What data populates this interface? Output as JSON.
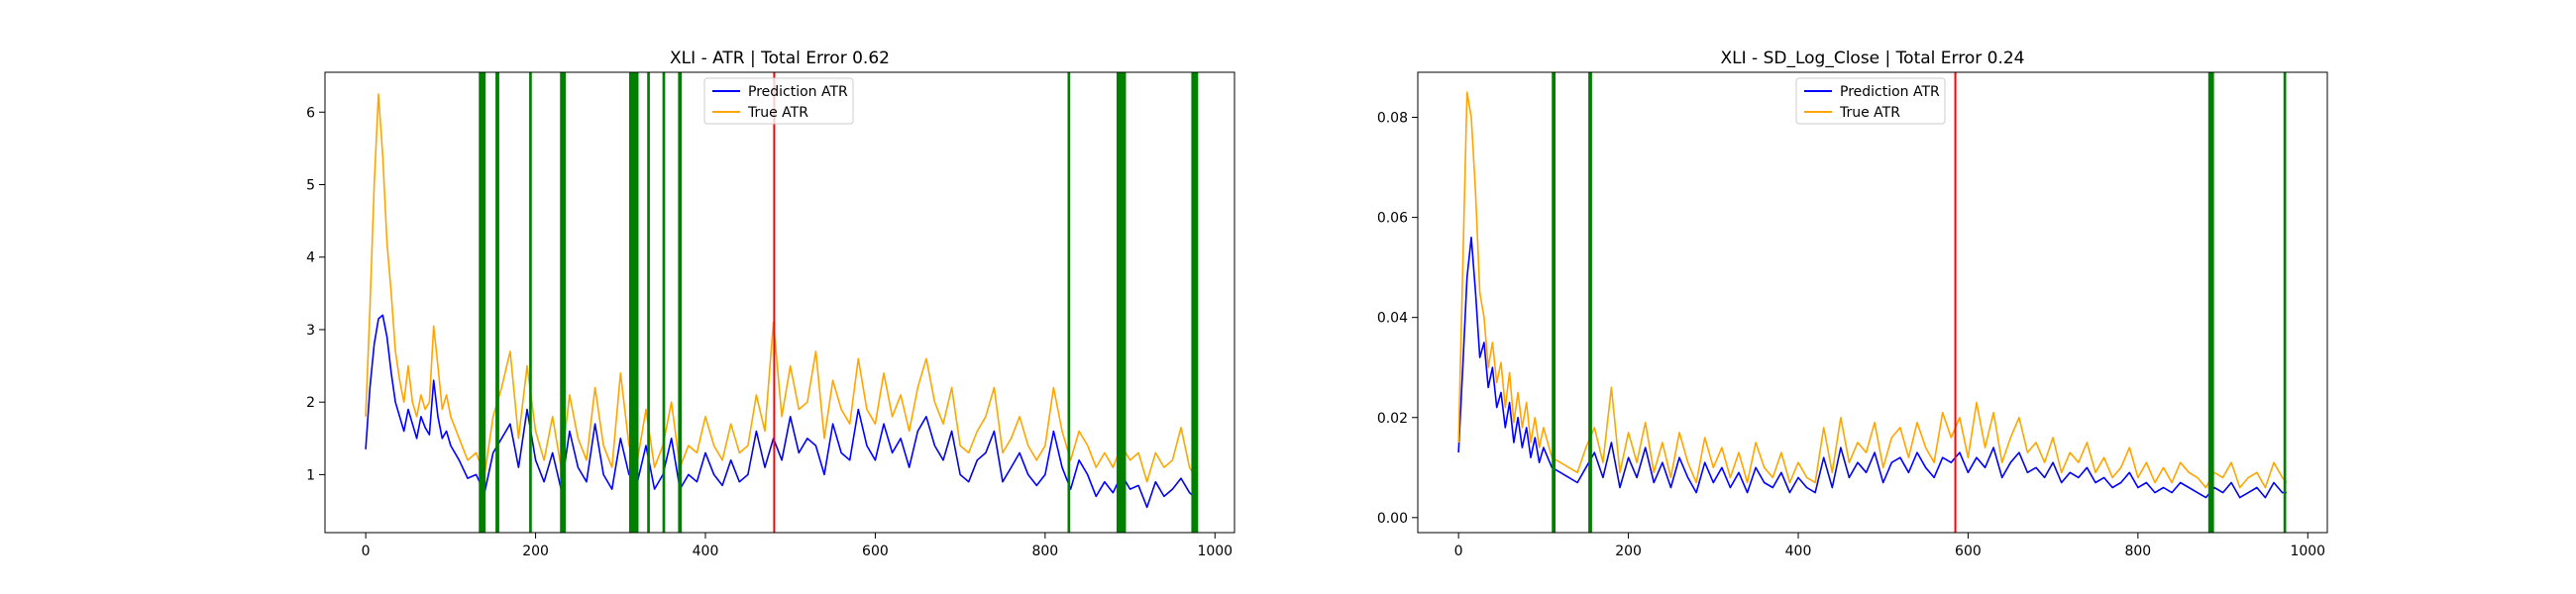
{
  "colors": {
    "prediction": "#0000ff",
    "true": "#ffa500",
    "marker_green": "#008000",
    "marker_red": "#ff0000",
    "axis": "#000000"
  },
  "chart_data": [
    {
      "type": "line",
      "title": "XLI - ATR | Total Error 0.62",
      "xlabel": "",
      "ylabel": "",
      "xlim": [
        -48,
        1023
      ],
      "ylim": [
        0.2,
        6.55
      ],
      "xticks": [
        0,
        200,
        400,
        600,
        800,
        1000
      ],
      "yticks": [
        1,
        2,
        3,
        4,
        5,
        6
      ],
      "legend": {
        "placement": "top-center",
        "entries": [
          "Prediction ATR",
          "True ATR"
        ]
      },
      "green_lines": [
        {
          "x": 136,
          "w": 3
        },
        {
          "x": 139,
          "w": 2
        },
        {
          "x": 155,
          "w": 2
        },
        {
          "x": 194,
          "w": 1
        },
        {
          "x": 231,
          "w": 2
        },
        {
          "x": 234,
          "w": 1
        },
        {
          "x": 313,
          "w": 3
        },
        {
          "x": 316,
          "w": 3
        },
        {
          "x": 319,
          "w": 2
        },
        {
          "x": 333,
          "w": 1
        },
        {
          "x": 351,
          "w": 1
        },
        {
          "x": 370,
          "w": 2
        },
        {
          "x": 828,
          "w": 1
        },
        {
          "x": 887,
          "w": 3
        },
        {
          "x": 890,
          "w": 3
        },
        {
          "x": 893,
          "w": 2
        },
        {
          "x": 975,
          "w": 3
        },
        {
          "x": 978,
          "w": 2
        }
      ],
      "red_lines": [
        481
      ],
      "series": [
        {
          "name": "Prediction ATR",
          "color_key": "prediction",
          "x": [
            0,
            5,
            10,
            15,
            20,
            25,
            30,
            35,
            40,
            45,
            50,
            55,
            60,
            65,
            70,
            75,
            80,
            85,
            90,
            95,
            100,
            110,
            120,
            130,
            140,
            150,
            160,
            170,
            180,
            190,
            200,
            210,
            220,
            230,
            240,
            250,
            260,
            270,
            280,
            290,
            300,
            310,
            320,
            330,
            340,
            350,
            360,
            370,
            380,
            390,
            400,
            410,
            420,
            430,
            440,
            450,
            460,
            470,
            480,
            490,
            500,
            510,
            520,
            530,
            540,
            550,
            560,
            570,
            580,
            590,
            600,
            610,
            620,
            630,
            640,
            650,
            660,
            670,
            680,
            690,
            700,
            710,
            720,
            730,
            740,
            750,
            760,
            770,
            780,
            790,
            800,
            810,
            820,
            830,
            840,
            850,
            860,
            870,
            880,
            890,
            900,
            910,
            920,
            930,
            940,
            950,
            960,
            970,
            975
          ],
          "values": [
            1.35,
            2.2,
            2.8,
            3.15,
            3.2,
            2.9,
            2.4,
            2.0,
            1.8,
            1.6,
            1.9,
            1.7,
            1.5,
            1.8,
            1.65,
            1.55,
            2.3,
            1.8,
            1.5,
            1.6,
            1.4,
            1.2,
            0.95,
            1.0,
            0.75,
            1.3,
            1.5,
            1.7,
            1.1,
            1.9,
            1.2,
            0.9,
            1.3,
            0.8,
            1.6,
            1.1,
            0.9,
            1.7,
            1.0,
            0.8,
            1.5,
            1.0,
            0.9,
            1.4,
            0.8,
            1.0,
            1.5,
            0.8,
            1.0,
            0.9,
            1.3,
            1.0,
            0.85,
            1.2,
            0.9,
            1.0,
            1.6,
            1.1,
            1.5,
            1.2,
            1.8,
            1.3,
            1.5,
            1.4,
            1.0,
            1.7,
            1.3,
            1.2,
            1.9,
            1.4,
            1.2,
            1.7,
            1.3,
            1.5,
            1.1,
            1.6,
            1.8,
            1.4,
            1.2,
            1.6,
            1.0,
            0.9,
            1.2,
            1.3,
            1.6,
            0.9,
            1.1,
            1.3,
            1.0,
            0.85,
            1.0,
            1.6,
            1.1,
            0.8,
            1.2,
            1.0,
            0.7,
            0.9,
            0.75,
            1.0,
            0.8,
            0.85,
            0.55,
            0.9,
            0.7,
            0.8,
            0.95,
            0.75,
            0.7
          ]
        },
        {
          "name": "True ATR",
          "color_key": "true",
          "x": [
            0,
            5,
            10,
            15,
            20,
            25,
            30,
            35,
            40,
            45,
            50,
            55,
            60,
            65,
            70,
            75,
            80,
            85,
            90,
            95,
            100,
            110,
            120,
            130,
            140,
            150,
            160,
            170,
            180,
            190,
            200,
            210,
            220,
            230,
            240,
            250,
            260,
            270,
            280,
            290,
            300,
            310,
            320,
            330,
            340,
            350,
            360,
            370,
            380,
            390,
            400,
            410,
            420,
            430,
            440,
            450,
            460,
            470,
            480,
            490,
            500,
            510,
            520,
            530,
            540,
            550,
            560,
            570,
            580,
            590,
            600,
            610,
            620,
            630,
            640,
            650,
            660,
            670,
            680,
            690,
            700,
            710,
            720,
            730,
            740,
            750,
            760,
            770,
            780,
            790,
            800,
            810,
            820,
            830,
            840,
            850,
            860,
            870,
            880,
            890,
            900,
            910,
            920,
            930,
            940,
            950,
            960,
            970,
            975
          ],
          "values": [
            1.8,
            3.3,
            5.0,
            6.25,
            5.4,
            4.2,
            3.5,
            2.7,
            2.3,
            2.0,
            2.5,
            2.0,
            1.8,
            2.1,
            1.9,
            2.0,
            3.05,
            2.5,
            1.9,
            2.1,
            1.8,
            1.5,
            1.2,
            1.3,
            1.0,
            1.8,
            2.2,
            2.7,
            1.5,
            2.5,
            1.6,
            1.2,
            1.8,
            1.1,
            2.1,
            1.5,
            1.2,
            2.2,
            1.4,
            1.1,
            2.4,
            1.4,
            1.2,
            1.9,
            1.1,
            1.4,
            2.0,
            1.1,
            1.4,
            1.3,
            1.8,
            1.4,
            1.2,
            1.7,
            1.3,
            1.4,
            2.1,
            1.6,
            3.1,
            1.8,
            2.5,
            1.9,
            2.0,
            2.7,
            1.5,
            2.3,
            1.9,
            1.7,
            2.6,
            1.9,
            1.7,
            2.4,
            1.8,
            2.1,
            1.6,
            2.2,
            2.6,
            2.0,
            1.7,
            2.2,
            1.4,
            1.3,
            1.6,
            1.8,
            2.2,
            1.3,
            1.5,
            1.8,
            1.4,
            1.2,
            1.4,
            2.2,
            1.6,
            1.2,
            1.6,
            1.4,
            1.1,
            1.3,
            1.1,
            1.4,
            1.2,
            1.3,
            0.9,
            1.3,
            1.1,
            1.2,
            1.65,
            1.1,
            1.0
          ]
        }
      ]
    },
    {
      "type": "line",
      "title": "XLI - SD_Log_Close | Total Error 0.24",
      "xlabel": "",
      "ylabel": "",
      "xlim": [
        -48,
        1023
      ],
      "ylim": [
        -0.003,
        0.089
      ],
      "xticks": [
        0,
        200,
        400,
        600,
        800,
        1000
      ],
      "yticks": [
        0.0,
        0.02,
        0.04,
        0.06,
        0.08
      ],
      "ytick_labels": [
        "0.00",
        "0.02",
        "0.04",
        "0.06",
        "0.08"
      ],
      "legend": {
        "placement": "top-center",
        "entries": [
          "Prediction ATR",
          "True ATR"
        ]
      },
      "green_lines": [
        {
          "x": 112,
          "w": 2
        },
        {
          "x": 155,
          "w": 2
        },
        {
          "x": 885,
          "w": 2
        },
        {
          "x": 888,
          "w": 1
        },
        {
          "x": 973,
          "w": 1
        }
      ],
      "red_lines": [
        585
      ],
      "series": [
        {
          "name": "Prediction ATR",
          "color_key": "prediction",
          "x": [
            0,
            5,
            10,
            15,
            20,
            25,
            30,
            35,
            40,
            45,
            50,
            55,
            60,
            65,
            70,
            75,
            80,
            85,
            90,
            95,
            100,
            110,
            120,
            130,
            140,
            150,
            160,
            170,
            180,
            190,
            200,
            210,
            220,
            230,
            240,
            250,
            260,
            270,
            280,
            290,
            300,
            310,
            320,
            330,
            340,
            350,
            360,
            370,
            380,
            390,
            400,
            410,
            420,
            430,
            440,
            450,
            460,
            470,
            480,
            490,
            500,
            510,
            520,
            530,
            540,
            550,
            560,
            570,
            580,
            590,
            600,
            610,
            620,
            630,
            640,
            650,
            660,
            670,
            680,
            690,
            700,
            710,
            720,
            730,
            740,
            750,
            760,
            770,
            780,
            790,
            800,
            810,
            820,
            830,
            840,
            850,
            860,
            870,
            880,
            890,
            900,
            910,
            920,
            930,
            940,
            950,
            960,
            970,
            975
          ],
          "values": [
            0.013,
            0.03,
            0.048,
            0.056,
            0.045,
            0.032,
            0.035,
            0.026,
            0.03,
            0.022,
            0.025,
            0.018,
            0.023,
            0.015,
            0.02,
            0.014,
            0.018,
            0.012,
            0.016,
            0.011,
            0.014,
            0.01,
            0.009,
            0.008,
            0.007,
            0.01,
            0.013,
            0.008,
            0.015,
            0.006,
            0.012,
            0.008,
            0.014,
            0.007,
            0.011,
            0.006,
            0.012,
            0.008,
            0.005,
            0.011,
            0.007,
            0.01,
            0.006,
            0.009,
            0.005,
            0.01,
            0.007,
            0.006,
            0.009,
            0.005,
            0.008,
            0.006,
            0.005,
            0.012,
            0.006,
            0.014,
            0.008,
            0.011,
            0.009,
            0.013,
            0.007,
            0.011,
            0.012,
            0.009,
            0.013,
            0.01,
            0.008,
            0.012,
            0.011,
            0.013,
            0.009,
            0.012,
            0.01,
            0.014,
            0.008,
            0.011,
            0.013,
            0.009,
            0.01,
            0.008,
            0.011,
            0.007,
            0.009,
            0.008,
            0.01,
            0.007,
            0.008,
            0.006,
            0.007,
            0.009,
            0.006,
            0.007,
            0.005,
            0.006,
            0.005,
            0.007,
            0.006,
            0.005,
            0.004,
            0.006,
            0.005,
            0.007,
            0.004,
            0.005,
            0.006,
            0.004,
            0.007,
            0.005,
            0.005
          ]
        },
        {
          "name": "True ATR",
          "color_key": "true",
          "x": [
            0,
            5,
            10,
            15,
            20,
            25,
            30,
            35,
            40,
            45,
            50,
            55,
            60,
            65,
            70,
            75,
            80,
            85,
            90,
            95,
            100,
            110,
            120,
            130,
            140,
            150,
            160,
            170,
            180,
            190,
            200,
            210,
            220,
            230,
            240,
            250,
            260,
            270,
            280,
            290,
            300,
            310,
            320,
            330,
            340,
            350,
            360,
            370,
            380,
            390,
            400,
            410,
            420,
            430,
            440,
            450,
            460,
            470,
            480,
            490,
            500,
            510,
            520,
            530,
            540,
            550,
            560,
            570,
            580,
            590,
            600,
            610,
            620,
            630,
            640,
            650,
            660,
            670,
            680,
            690,
            700,
            710,
            720,
            730,
            740,
            750,
            760,
            770,
            780,
            790,
            800,
            810,
            820,
            830,
            840,
            850,
            860,
            870,
            880,
            890,
            900,
            910,
            920,
            930,
            940,
            950,
            960,
            970,
            975
          ],
          "values": [
            0.015,
            0.05,
            0.085,
            0.08,
            0.065,
            0.045,
            0.04,
            0.03,
            0.035,
            0.027,
            0.031,
            0.022,
            0.029,
            0.019,
            0.025,
            0.018,
            0.023,
            0.015,
            0.02,
            0.014,
            0.018,
            0.012,
            0.011,
            0.01,
            0.009,
            0.014,
            0.018,
            0.011,
            0.026,
            0.009,
            0.017,
            0.011,
            0.019,
            0.009,
            0.015,
            0.008,
            0.017,
            0.011,
            0.007,
            0.016,
            0.01,
            0.014,
            0.008,
            0.013,
            0.007,
            0.015,
            0.01,
            0.008,
            0.013,
            0.007,
            0.011,
            0.008,
            0.007,
            0.018,
            0.009,
            0.02,
            0.011,
            0.015,
            0.013,
            0.019,
            0.01,
            0.016,
            0.018,
            0.012,
            0.019,
            0.014,
            0.011,
            0.021,
            0.016,
            0.02,
            0.012,
            0.023,
            0.014,
            0.021,
            0.011,
            0.016,
            0.02,
            0.013,
            0.015,
            0.011,
            0.016,
            0.009,
            0.013,
            0.011,
            0.015,
            0.009,
            0.012,
            0.008,
            0.01,
            0.014,
            0.008,
            0.011,
            0.007,
            0.01,
            0.007,
            0.011,
            0.009,
            0.008,
            0.006,
            0.009,
            0.008,
            0.011,
            0.006,
            0.008,
            0.009,
            0.006,
            0.011,
            0.008,
            0.007
          ]
        }
      ]
    }
  ]
}
